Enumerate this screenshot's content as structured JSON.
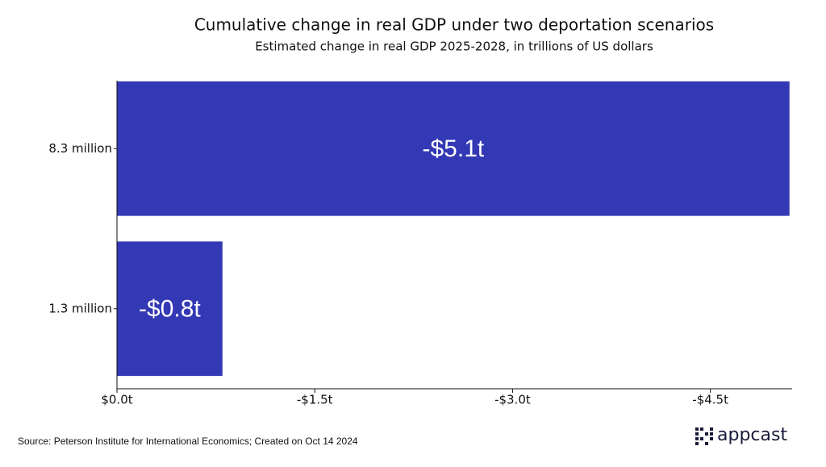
{
  "chart_data": {
    "type": "hbar",
    "title": "Cumulative change in real GDP under two deportation scenarios",
    "subtitle": "Estimated change in real GDP 2025-2028, in trillions of US dollars",
    "categories": [
      "8.3 million",
      "1.3 million"
    ],
    "values": [
      -5.1,
      -0.8
    ],
    "value_labels": [
      "-$5.1t",
      "-$0.8t"
    ],
    "color": "#3339b5",
    "xlim": [
      0,
      -5.12
    ],
    "xticks": [
      {
        "value": 0,
        "label": "$0.0t"
      },
      {
        "value": -1.5,
        "label": "-$1.5t"
      },
      {
        "value": -3.0,
        "label": "-$3.0t"
      },
      {
        "value": -4.5,
        "label": "-$4.5t"
      }
    ],
    "source": "Source: Peterson Institute for International Economics; Created on Oct 14 2024",
    "logo": "appcast"
  }
}
